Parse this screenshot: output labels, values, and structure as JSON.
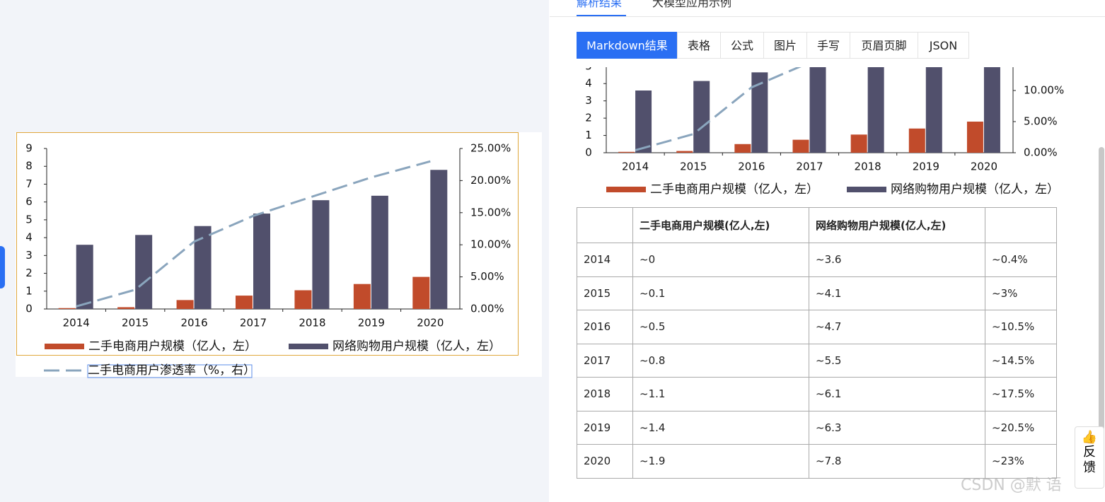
{
  "nav_tabs": [
    "解析结果",
    "大模型应用示例"
  ],
  "format_tabs": [
    "Markdown结果",
    "表格",
    "公式",
    "图片",
    "手写",
    "页眉页脚",
    "JSON"
  ],
  "chart_data": {
    "type": "bar",
    "categories": [
      "2014",
      "2015",
      "2016",
      "2017",
      "2018",
      "2019",
      "2020"
    ],
    "series": [
      {
        "name": "二手电商用户规模（亿人，左）",
        "color": "#c14b2b",
        "values": [
          0.05,
          0.1,
          0.5,
          0.75,
          1.05,
          1.4,
          1.8
        ]
      },
      {
        "name": "网络购物用户规模（亿人，左）",
        "color": "#51506c",
        "values": [
          3.6,
          4.15,
          4.65,
          5.35,
          6.1,
          6.35,
          7.8
        ]
      },
      {
        "name": "二手电商用户渗透率（%，右）",
        "type": "line",
        "axis": "y2",
        "color": "#8aa5bd",
        "values": [
          0.4,
          3,
          10.5,
          14.5,
          17.5,
          20.5,
          23
        ]
      }
    ],
    "ylim": [
      0,
      9
    ],
    "yticks": [
      0,
      1,
      2,
      3,
      4,
      5,
      6,
      7,
      8,
      9
    ],
    "y2lim": [
      0,
      25
    ],
    "y2ticks": [
      {
        "value": 0,
        "label": "0.00%"
      },
      {
        "value": 5,
        "label": "5.00%"
      },
      {
        "value": 10,
        "label": "10.00%"
      },
      {
        "value": 15,
        "label": "15.00%"
      },
      {
        "value": 20,
        "label": "20.00%"
      },
      {
        "value": 25,
        "label": "25.00%"
      }
    ]
  },
  "table": {
    "header": [
      "二手电商用户规模(亿人,左)",
      "网络购物用户规模(亿人,左)"
    ],
    "rows": [
      [
        "2014",
        "~0",
        "~3.6",
        "~0.4%"
      ],
      [
        "2015",
        "~0.1",
        "~4.1",
        "~3%"
      ],
      [
        "2016",
        "~0.5",
        "~4.7",
        "~10.5%"
      ],
      [
        "2017",
        "~0.8",
        "~5.5",
        "~14.5%"
      ],
      [
        "2018",
        "~1.1",
        "~6.1",
        "~17.5%"
      ],
      [
        "2019",
        "~1.4",
        "~6.3",
        "~20.5%"
      ],
      [
        "2020",
        "~1.9",
        "~7.8",
        "~23%"
      ]
    ]
  },
  "feedback": "反馈",
  "watermark": "CSDN @默 语"
}
